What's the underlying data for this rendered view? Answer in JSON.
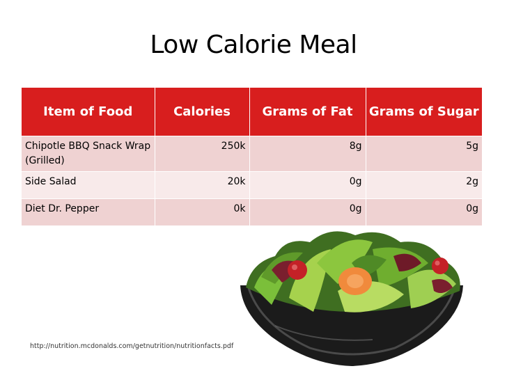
{
  "slide": {
    "title": "Low Calorie Meal",
    "source_text": "http://nutrition.mcdonalds.com/getnutrition/nutritionfacts.pdf"
  },
  "table": {
    "headers": [
      "Item of Food",
      "Calories",
      "Grams of Fat",
      "Grams of Sugar"
    ],
    "rows": [
      {
        "item": "Chipotle BBQ Snack Wrap (Grilled)",
        "calories": "250k",
        "fat": "8g",
        "sugar": "5g"
      },
      {
        "item": "Side Salad",
        "calories": "20k",
        "fat": "0g",
        "sugar": "2g"
      },
      {
        "item": "Diet Dr. Pepper",
        "calories": "0k",
        "fat": "0g",
        "sugar": "0g"
      }
    ]
  },
  "colors": {
    "header_red": "#d81e1e",
    "row_pink": "#efd2d2",
    "row_light": "#f8eaea"
  },
  "image": {
    "icon": "salad-bowl-photo"
  }
}
